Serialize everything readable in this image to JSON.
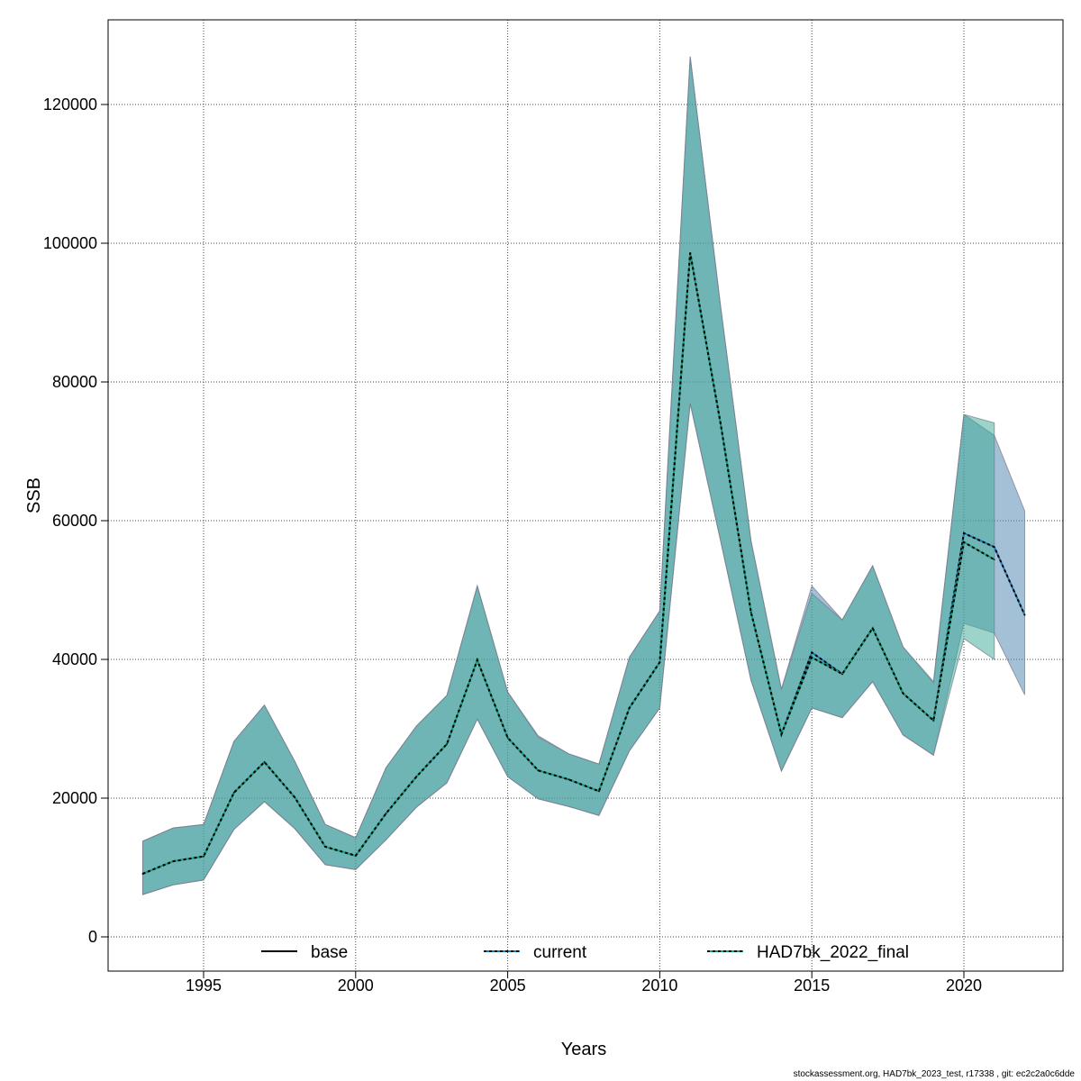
{
  "chart_data": {
    "type": "area",
    "title": "",
    "xlabel": "Years",
    "ylabel": "SSB",
    "xlim": [
      1992,
      2023
    ],
    "ylim": [
      -5000,
      132000
    ],
    "x_ticks": [
      1995,
      2000,
      2005,
      2010,
      2015,
      2020
    ],
    "y_ticks": [
      0,
      20000,
      40000,
      60000,
      80000,
      100000,
      120000
    ],
    "grid": true,
    "legend_position": "bottom",
    "colors": {
      "current_band": "#7aa6c2",
      "current_line": "#1f78b4",
      "had_band": "#4fb0a0",
      "had_line": "#1b9e77"
    },
    "legend": [
      "base",
      "current",
      "HAD7bk_2022_final"
    ],
    "series": [
      {
        "name": "current",
        "x": [
          1993,
          1994,
          1995,
          1996,
          1997,
          1998,
          1999,
          2000,
          2001,
          2002,
          2003,
          2004,
          2005,
          2006,
          2007,
          2008,
          2009,
          2010,
          2011,
          2012,
          2013,
          2014,
          2015,
          2016,
          2017,
          2018,
          2019,
          2020,
          2021,
          2022
        ],
        "values": [
          9100,
          10900,
          11600,
          20800,
          25200,
          20100,
          13000,
          11700,
          17800,
          23100,
          27800,
          39900,
          28700,
          24000,
          22700,
          21000,
          33000,
          39600,
          98600,
          74000,
          46800,
          29200,
          41000,
          37900,
          44500,
          35100,
          31200,
          58200,
          56200,
          46400
        ],
        "upper": [
          13800,
          15700,
          16200,
          28200,
          33400,
          25300,
          16200,
          14300,
          24400,
          30400,
          34800,
          50600,
          35300,
          29000,
          26400,
          24900,
          40300,
          47000,
          126900,
          90900,
          57100,
          35700,
          50600,
          45700,
          53500,
          41800,
          36600,
          75300,
          72300,
          61400
        ],
        "lower": [
          6100,
          7500,
          8200,
          15500,
          19500,
          15600,
          10400,
          9700,
          14000,
          18700,
          22200,
          31400,
          23100,
          19900,
          18800,
          17500,
          26800,
          33000,
          76900,
          57100,
          37000,
          23900,
          33000,
          31600,
          36800,
          29100,
          26200,
          45200,
          43800,
          34900
        ]
      },
      {
        "name": "HAD7bk_2022_final",
        "x": [
          1993,
          1994,
          1995,
          1996,
          1997,
          1998,
          1999,
          2000,
          2001,
          2002,
          2003,
          2004,
          2005,
          2006,
          2007,
          2008,
          2009,
          2010,
          2011,
          2012,
          2013,
          2014,
          2015,
          2016,
          2017,
          2018,
          2019,
          2020,
          2021
        ],
        "values": [
          9100,
          10900,
          11600,
          20800,
          25200,
          20100,
          13000,
          11700,
          17800,
          23100,
          27800,
          39900,
          28700,
          24000,
          22700,
          21000,
          33000,
          39600,
          98600,
          74000,
          46800,
          29200,
          40300,
          37900,
          44500,
          35100,
          31200,
          56900,
          54400
        ],
        "upper": [
          13800,
          15700,
          16200,
          28200,
          33400,
          25300,
          16200,
          14300,
          24400,
          30400,
          34800,
          50600,
          35300,
          28800,
          26400,
          24900,
          40300,
          47000,
          126900,
          90900,
          57100,
          35700,
          49500,
          45700,
          53500,
          41800,
          36800,
          75300,
          74100
        ],
        "lower": [
          6100,
          7500,
          8200,
          15500,
          19500,
          15600,
          10400,
          9700,
          14000,
          18700,
          22200,
          31400,
          23100,
          19900,
          18800,
          17500,
          26800,
          33000,
          76900,
          57100,
          37000,
          23900,
          33000,
          31600,
          36800,
          29100,
          26200,
          43000,
          40000
        ]
      }
    ]
  },
  "footer": "stockassessment.org, HAD7bk_2023_test, r17338 , git: ec2c2a0c6dde"
}
